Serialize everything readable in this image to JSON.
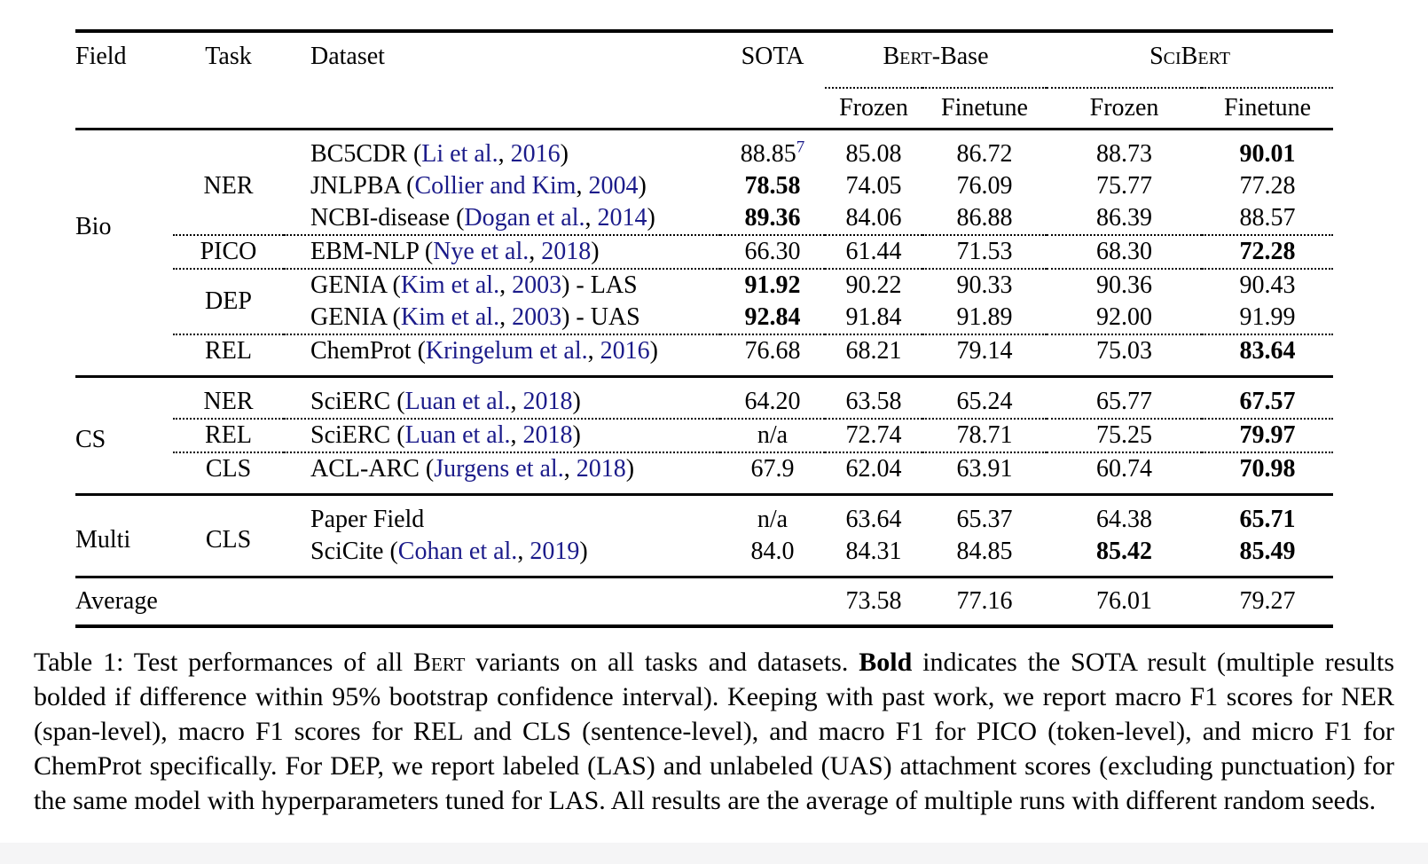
{
  "link_color": "#1b1b8a",
  "table": {
    "header": {
      "field": "Field",
      "task": "Task",
      "dataset": "Dataset",
      "sota": "SOTA",
      "bert_base": {
        "sc": "Bert",
        "rest": "-Base"
      },
      "scibert": {
        "sc": "SciBert",
        "rest": ""
      },
      "sub": [
        "Frozen",
        "Finetune",
        "Frozen",
        "Finetune"
      ]
    },
    "sections": [
      {
        "field": "Bio",
        "groups": [
          {
            "task": "NER",
            "rows": [
              {
                "dataset": "BC5CDR",
                "cite": "Li et al.",
                "year": "2016",
                "suffix": "",
                "sota": "88.85",
                "sota_sup": "7",
                "sota_bold": false,
                "values": [
                  "85.08",
                  "86.72",
                  "88.73",
                  "90.01"
                ],
                "bold": [
                  false,
                  false,
                  false,
                  true
                ]
              },
              {
                "dataset": "JNLPBA",
                "cite": "Collier and Kim",
                "year": "2004",
                "suffix": "",
                "sota": "78.58",
                "sota_sup": "",
                "sota_bold": true,
                "values": [
                  "74.05",
                  "76.09",
                  "75.77",
                  "77.28"
                ],
                "bold": [
                  false,
                  false,
                  false,
                  false
                ]
              },
              {
                "dataset": "NCBI-disease",
                "cite": "Dogan et al.",
                "year": "2014",
                "suffix": "",
                "sota": "89.36",
                "sota_sup": "",
                "sota_bold": true,
                "values": [
                  "84.06",
                  "86.88",
                  "86.39",
                  "88.57"
                ],
                "bold": [
                  false,
                  false,
                  false,
                  false
                ]
              }
            ]
          },
          {
            "task": "PICO",
            "rows": [
              {
                "dataset": "EBM-NLP",
                "cite": "Nye et al.",
                "year": "2018",
                "suffix": "",
                "sota": "66.30",
                "sota_sup": "",
                "sota_bold": false,
                "values": [
                  "61.44",
                  "71.53",
                  "68.30",
                  "72.28"
                ],
                "bold": [
                  false,
                  false,
                  false,
                  true
                ]
              }
            ]
          },
          {
            "task": "DEP",
            "rows": [
              {
                "dataset": "GENIA",
                "cite": "Kim et al.",
                "year": "2003",
                "suffix": " - LAS",
                "sota": "91.92",
                "sota_sup": "",
                "sota_bold": true,
                "values": [
                  "90.22",
                  "90.33",
                  "90.36",
                  "90.43"
                ],
                "bold": [
                  false,
                  false,
                  false,
                  false
                ]
              },
              {
                "dataset": "GENIA",
                "cite": "Kim et al.",
                "year": "2003",
                "suffix": " - UAS",
                "sota": "92.84",
                "sota_sup": "",
                "sota_bold": true,
                "values": [
                  "91.84",
                  "91.89",
                  "92.00",
                  "91.99"
                ],
                "bold": [
                  false,
                  false,
                  false,
                  false
                ]
              }
            ]
          },
          {
            "task": "REL",
            "rows": [
              {
                "dataset": "ChemProt",
                "cite": "Kringelum et al.",
                "year": "2016",
                "suffix": "",
                "sota": "76.68",
                "sota_sup": "",
                "sota_bold": false,
                "values": [
                  "68.21",
                  "79.14",
                  "75.03",
                  "83.64"
                ],
                "bold": [
                  false,
                  false,
                  false,
                  true
                ]
              }
            ]
          }
        ]
      },
      {
        "field": "CS",
        "groups": [
          {
            "task": "NER",
            "rows": [
              {
                "dataset": "SciERC",
                "cite": "Luan et al.",
                "year": "2018",
                "suffix": "",
                "sota": "64.20",
                "sota_sup": "",
                "sota_bold": false,
                "values": [
                  "63.58",
                  "65.24",
                  "65.77",
                  "67.57"
                ],
                "bold": [
                  false,
                  false,
                  false,
                  true
                ]
              }
            ]
          },
          {
            "task": "REL",
            "rows": [
              {
                "dataset": "SciERC",
                "cite": "Luan et al.",
                "year": "2018",
                "suffix": "",
                "sota": "n/a",
                "sota_sup": "",
                "sota_bold": false,
                "values": [
                  "72.74",
                  "78.71",
                  "75.25",
                  "79.97"
                ],
                "bold": [
                  false,
                  false,
                  false,
                  true
                ]
              }
            ]
          },
          {
            "task": "CLS",
            "rows": [
              {
                "dataset": "ACL-ARC",
                "cite": "Jurgens et al.",
                "year": "2018",
                "suffix": "",
                "sota": "67.9",
                "sota_sup": "",
                "sota_bold": false,
                "values": [
                  "62.04",
                  "63.91",
                  "60.74",
                  "70.98"
                ],
                "bold": [
                  false,
                  false,
                  false,
                  true
                ]
              }
            ]
          }
        ]
      },
      {
        "field": "Multi",
        "groups": [
          {
            "task": "CLS",
            "rows": [
              {
                "dataset": "Paper Field",
                "cite": "",
                "year": "",
                "suffix": "",
                "sota": "n/a",
                "sota_sup": "",
                "sota_bold": false,
                "values": [
                  "63.64",
                  "65.37",
                  "64.38",
                  "65.71"
                ],
                "bold": [
                  false,
                  false,
                  false,
                  true
                ]
              },
              {
                "dataset": "SciCite",
                "cite": "Cohan et al.",
                "year": "2019",
                "suffix": "",
                "sota": "84.0",
                "sota_sup": "",
                "sota_bold": false,
                "values": [
                  "84.31",
                  "84.85",
                  "85.42",
                  "85.49"
                ],
                "bold": [
                  false,
                  false,
                  true,
                  true
                ]
              }
            ]
          }
        ]
      }
    ],
    "average": {
      "label": "Average",
      "values": [
        "73.58",
        "77.16",
        "76.01",
        "79.27"
      ]
    }
  },
  "caption": {
    "segments": [
      {
        "t": "Table 1: Test performances of all ",
        "b": false,
        "sc": false
      },
      {
        "t": "Bert",
        "b": false,
        "sc": true
      },
      {
        "t": " variants on all tasks and datasets. ",
        "b": false,
        "sc": false
      },
      {
        "t": "Bold",
        "b": true,
        "sc": false
      },
      {
        "t": " indicates the SOTA result (multiple results bolded if difference within 95% bootstrap confidence interval). Keeping with past work, we report macro F1 scores for NER (span-level), macro F1 scores for REL and CLS (sentence-level), and macro F1 for PICO (token-level), and micro F1 for ChemProt specifically. For DEP, we report labeled (LAS) and unlabeled (UAS) attachment scores (excluding punctuation) for the same model with hyperparameters tuned for LAS. All results are the average of multiple runs with different random seeds.",
        "b": false,
        "sc": false
      }
    ]
  }
}
